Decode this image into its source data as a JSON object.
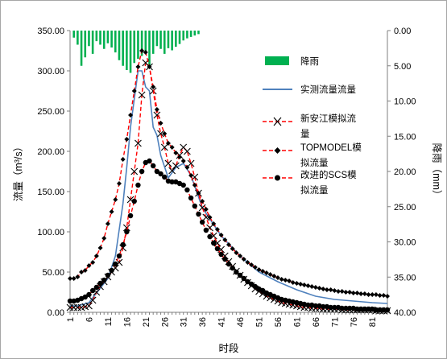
{
  "chart_data": {
    "type": "line",
    "xlabel": "时段",
    "ylabel": "流量（m³/s）",
    "y2label": "降雨（mm）",
    "ylim": [
      0,
      350
    ],
    "y_ticks": [
      "0.00",
      "50.00",
      "100.00",
      "150.00",
      "200.00",
      "250.00",
      "300.00",
      "350.00"
    ],
    "y2lim": [
      0,
      40
    ],
    "y2_reversed": true,
    "y2_ticks": [
      "0.00",
      "5.00",
      "10.00",
      "15.00",
      "20.00",
      "25.00",
      "30.00",
      "35.00",
      "40.00"
    ],
    "x_ticks": [
      "1",
      "6",
      "11",
      "16",
      "21",
      "26",
      "31",
      "36",
      "41",
      "46",
      "51",
      "56",
      "61",
      "66",
      "71",
      "76",
      "81"
    ],
    "xlim": [
      1,
      85
    ],
    "grid": false,
    "legend_position": "right",
    "rain": {
      "name": "降雨",
      "color": "#00b050",
      "x": [
        2,
        3,
        4,
        5,
        6,
        7,
        8,
        9,
        10,
        11,
        12,
        13,
        14,
        15,
        16,
        17,
        18,
        19,
        20,
        21,
        22,
        23,
        24,
        25,
        26,
        27,
        28,
        29,
        30,
        31,
        32,
        33,
        34,
        35
      ],
      "values": [
        1.0,
        2.0,
        5.0,
        3.8,
        2.2,
        3.3,
        1.5,
        2.0,
        2.6,
        1.8,
        2.4,
        3.1,
        4.2,
        5.0,
        5.6,
        6.0,
        4.6,
        4.0,
        3.6,
        3.0,
        5.0,
        3.3,
        2.2,
        2.6,
        3.3,
        2.5,
        2.8,
        2.3,
        1.9,
        1.4,
        1.1,
        0.9,
        0.7,
        0.5
      ]
    },
    "series": [
      {
        "name": "实测流量流量",
        "color": "#4f81bd",
        "style": "solid",
        "marker": "none",
        "x": [
          1,
          3,
          6,
          9,
          11,
          13,
          15,
          16,
          17,
          18,
          19,
          20,
          21,
          22,
          23,
          24,
          25,
          27,
          29,
          31,
          33,
          36,
          41,
          46,
          51,
          56,
          61,
          66,
          71,
          76,
          81,
          85
        ],
        "values": [
          8,
          8,
          12,
          30,
          42,
          70,
          135,
          180,
          230,
          265,
          300,
          300,
          280,
          275,
          230,
          220,
          195,
          167,
          180,
          185,
          170,
          130,
          95,
          70,
          50,
          38,
          28,
          20,
          16,
          14,
          12,
          11
        ]
      },
      {
        "name": "新安江模拟流量",
        "color": "#ff0000",
        "style": "dashed",
        "marker": "x",
        "x": [
          1,
          2,
          3,
          4,
          5,
          6,
          7,
          8,
          9,
          10,
          11,
          12,
          13,
          14,
          15,
          16,
          17,
          18,
          19,
          20,
          21,
          22,
          23,
          24,
          25,
          26,
          27,
          28,
          29,
          30,
          31,
          32,
          33,
          34,
          35,
          36,
          37,
          38,
          39,
          40,
          41,
          42,
          43,
          44,
          45,
          46,
          47,
          48,
          49,
          50,
          51,
          52,
          53,
          54,
          55,
          56,
          57,
          58,
          59,
          60,
          61,
          62,
          63,
          64,
          65,
          66,
          67,
          68,
          69,
          70,
          71,
          72,
          73,
          74,
          75,
          76,
          77,
          78,
          79,
          80,
          81,
          82,
          83,
          84,
          85
        ],
        "values": [
          6,
          6,
          6,
          6,
          7,
          8,
          15,
          25,
          32,
          38,
          44,
          50,
          55,
          62,
          80,
          105,
          140,
          175,
          210,
          270,
          310,
          305,
          275,
          245,
          222,
          205,
          185,
          176,
          182,
          195,
          205,
          200,
          185,
          168,
          148,
          130,
          118,
          105,
          95,
          86,
          78,
          70,
          63,
          57,
          51,
          46,
          41,
          37,
          33,
          29,
          26,
          23,
          20,
          18,
          16,
          14,
          12,
          11,
          10,
          9,
          8,
          7,
          6,
          6,
          5,
          5,
          5,
          4,
          4,
          4,
          4,
          4,
          3,
          3,
          3,
          3,
          3,
          3,
          3,
          3,
          3,
          2,
          2,
          2,
          2
        ]
      },
      {
        "name": "TOPMODEL模拟流量",
        "color": "#ff0000",
        "style": "dashed",
        "marker": "diamond",
        "x": [
          1,
          2,
          3,
          4,
          5,
          6,
          7,
          8,
          9,
          10,
          11,
          12,
          13,
          14,
          15,
          16,
          17,
          18,
          19,
          20,
          21,
          22,
          23,
          24,
          25,
          26,
          27,
          28,
          29,
          30,
          31,
          32,
          33,
          34,
          35,
          36,
          37,
          38,
          39,
          40,
          41,
          42,
          43,
          44,
          45,
          46,
          47,
          48,
          49,
          50,
          51,
          52,
          53,
          54,
          55,
          56,
          57,
          58,
          59,
          60,
          61,
          62,
          63,
          64,
          65,
          66,
          67,
          68,
          69,
          70,
          71,
          72,
          73,
          74,
          75,
          76,
          77,
          78,
          79,
          80,
          81,
          82,
          83,
          84,
          85
        ],
        "values": [
          42,
          42,
          44,
          50,
          52,
          58,
          62,
          70,
          80,
          92,
          110,
          125,
          140,
          160,
          190,
          215,
          245,
          275,
          305,
          325,
          323,
          305,
          280,
          252,
          235,
          222,
          210,
          205,
          198,
          193,
          188,
          180,
          170,
          158,
          148,
          138,
          128,
          118,
          110,
          103,
          96,
          90,
          84,
          79,
          74,
          70,
          66,
          62,
          59,
          56,
          53,
          51,
          49,
          47,
          45,
          43,
          41,
          40,
          39,
          37,
          36,
          35,
          34,
          33,
          32,
          31,
          30,
          29,
          28,
          28,
          27,
          26,
          26,
          25,
          25,
          24,
          24,
          23,
          23,
          22,
          22,
          22,
          21,
          21,
          20
        ]
      },
      {
        "name": "改进的SCS模拟流量",
        "color": "#ff0000",
        "style": "dashed",
        "marker": "circle",
        "x": [
          1,
          2,
          3,
          4,
          5,
          6,
          7,
          8,
          9,
          10,
          11,
          12,
          13,
          14,
          15,
          16,
          17,
          18,
          19,
          20,
          21,
          22,
          23,
          24,
          25,
          26,
          27,
          28,
          29,
          30,
          31,
          32,
          33,
          34,
          35,
          36,
          37,
          38,
          39,
          40,
          41,
          42,
          43,
          44,
          45,
          46,
          47,
          48,
          49,
          50,
          51,
          52,
          53,
          54,
          55,
          56,
          57,
          58,
          59,
          60,
          61,
          62,
          63,
          64,
          65,
          66,
          67,
          68,
          69,
          70,
          71,
          72,
          73,
          74,
          75,
          76,
          77,
          78,
          79,
          80,
          81,
          82,
          83,
          84,
          85
        ],
        "values": [
          14,
          14,
          15,
          17,
          19,
          22,
          27,
          31,
          36,
          40,
          46,
          52,
          60,
          70,
          84,
          100,
          120,
          138,
          158,
          175,
          186,
          188,
          182,
          175,
          172,
          168,
          163,
          162,
          162,
          160,
          158,
          152,
          142,
          132,
          122,
          112,
          102,
          94,
          86,
          79,
          72,
          66,
          60,
          55,
          50,
          46,
          42,
          38,
          35,
          32,
          29,
          27,
          24,
          22,
          20,
          18,
          16,
          15,
          14,
          13,
          12,
          11,
          10,
          9,
          9,
          8,
          8,
          7,
          7,
          6,
          6,
          6,
          5,
          5,
          5,
          5,
          4,
          4,
          4,
          4,
          4,
          3,
          3,
          3,
          3
        ]
      }
    ]
  },
  "legend": {
    "rain": "降雨",
    "observed": "实测流量流量",
    "xaj_line1": "新安江模拟流",
    "xaj_line2": "量",
    "top_line1": "TOPMODEL模",
    "top_line2": "拟流量",
    "scs_line1": "改进的SCS模",
    "scs_line2": "拟流量"
  }
}
